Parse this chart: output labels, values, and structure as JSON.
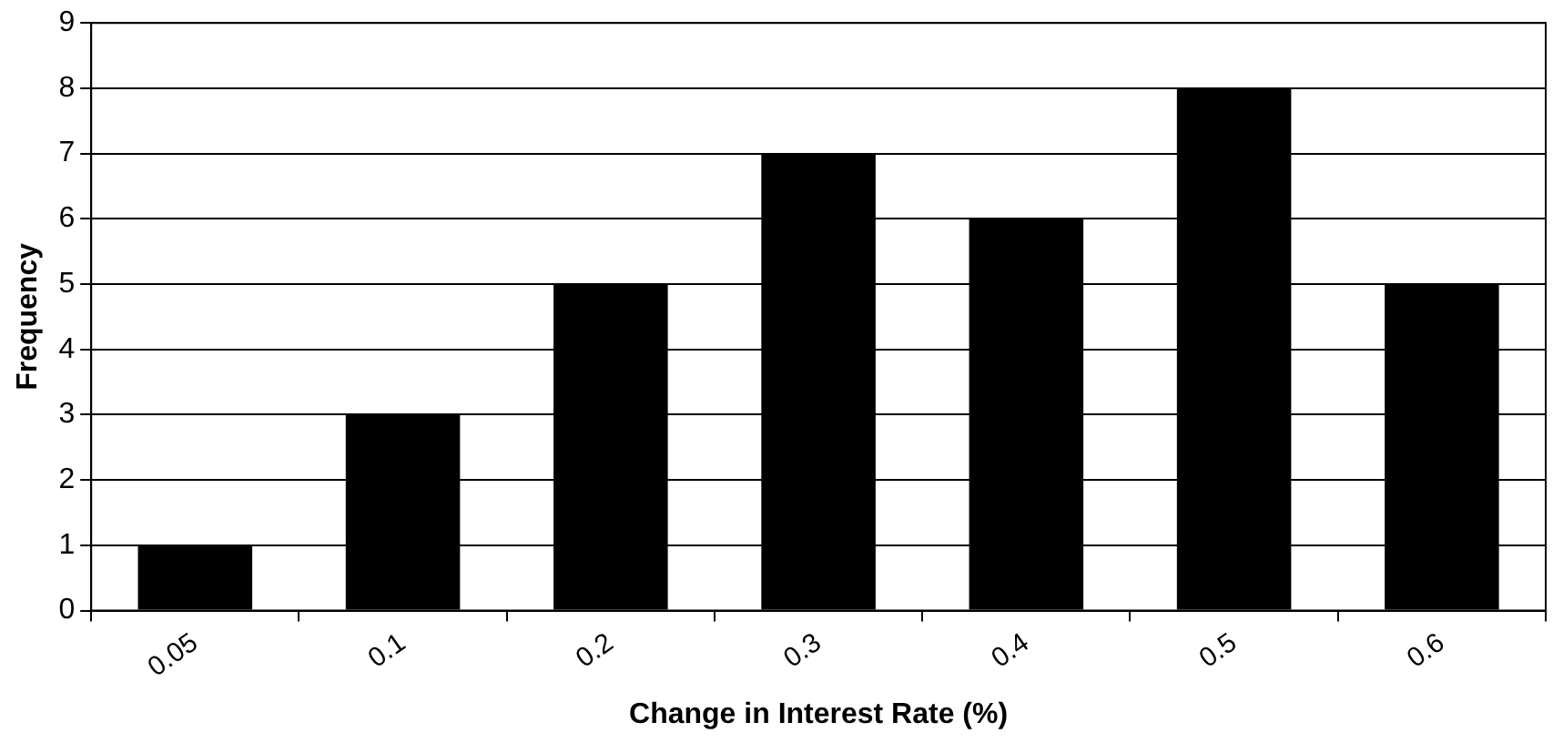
{
  "chart_data": {
    "type": "bar",
    "xlabel": "Change in Interest Rate (%)",
    "ylabel": "Frequency",
    "categories": [
      "0.05",
      "0.1",
      "0.2",
      "0.3",
      "0.4",
      "0.5",
      "0.6"
    ],
    "values": [
      1,
      3,
      5,
      7,
      6,
      8,
      5
    ],
    "color": "#000000",
    "ylim": [
      0,
      9
    ],
    "yticks": [
      0,
      1,
      2,
      3,
      4,
      5,
      6,
      7,
      8,
      9
    ],
    "grid": "y",
    "legend": false
  }
}
